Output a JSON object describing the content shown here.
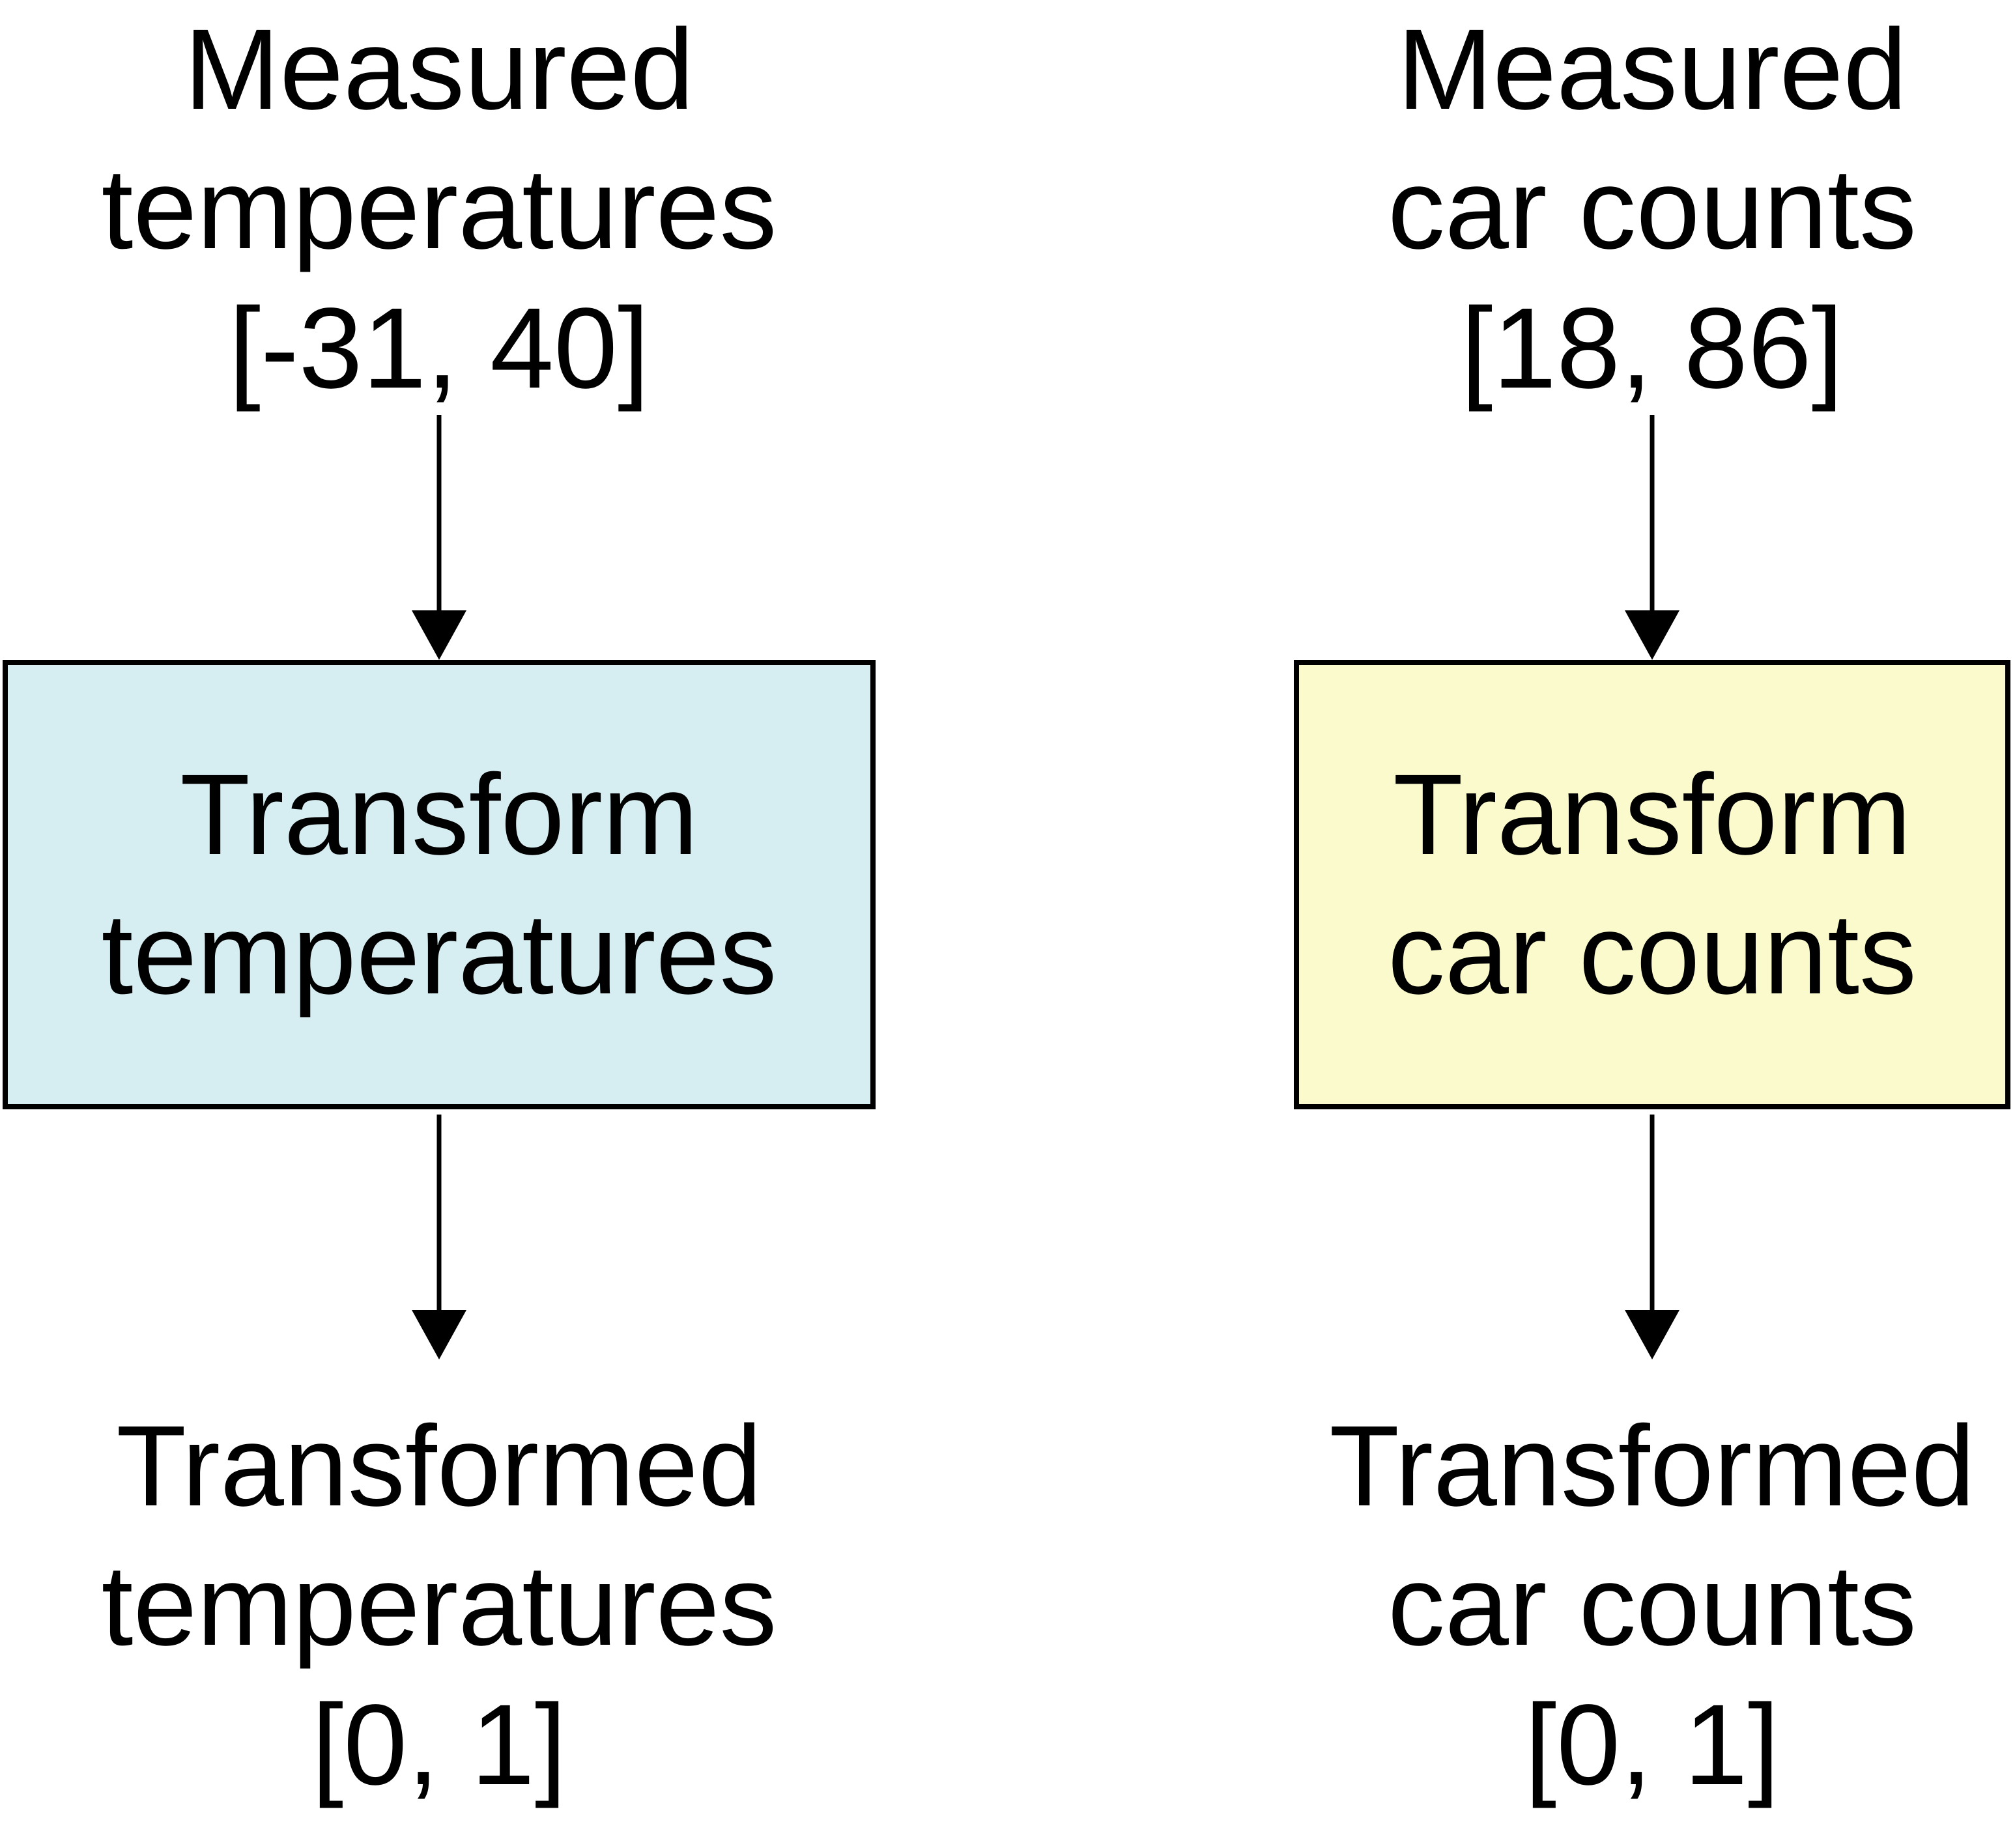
{
  "colors": {
    "left_box_fill": "#d6eef2",
    "right_box_fill": "#fafacc",
    "stroke": "#000000",
    "text": "#000000"
  },
  "left": {
    "input": {
      "line1": "Measured",
      "line2": "temperatures",
      "range": "[-31, 40]"
    },
    "box": {
      "line1": "Transform",
      "line2": "temperatures"
    },
    "output": {
      "line1": "Transformed",
      "line2": "temperatures",
      "range": "[0, 1]"
    }
  },
  "right": {
    "input": {
      "line1": "Measured",
      "line2": "car counts",
      "range": "[18, 86]"
    },
    "box": {
      "line1": "Transform",
      "line2": "car counts"
    },
    "output": {
      "line1": "Transformed",
      "line2": "car counts",
      "range": "[0, 1]"
    }
  }
}
